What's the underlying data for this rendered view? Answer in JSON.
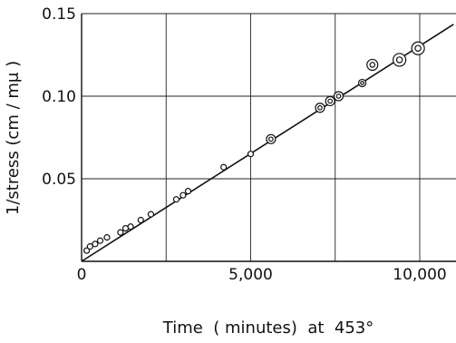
{
  "chart_data": {
    "type": "scatter",
    "title": "",
    "xlabel": "Time  ( minutes)  at  453°",
    "ylabel": "1/stress (cm / mμ )",
    "xlim": [
      0,
      11000
    ],
    "ylim": [
      0,
      0.15
    ],
    "xticks": [
      0,
      5000,
      10000
    ],
    "xtick_labels": [
      "0",
      "5,000",
      "10,000"
    ],
    "yticks": [
      0.05,
      0.1,
      0.15
    ],
    "ytick_labels": [
      "0.05",
      "0.10",
      "0.15"
    ],
    "grid": true,
    "fit_line": {
      "x": [
        0,
        11000
      ],
      "y": [
        0,
        0.1435
      ]
    },
    "series": [
      {
        "marker": "open-circle",
        "points": [
          {
            "x": 150,
            "y": 0.0065,
            "r": 3
          },
          {
            "x": 250,
            "y": 0.009,
            "r": 3
          },
          {
            "x": 400,
            "y": 0.0105,
            "r": 3
          },
          {
            "x": 550,
            "y": 0.0125,
            "r": 3
          },
          {
            "x": 750,
            "y": 0.0145,
            "r": 3
          },
          {
            "x": 1150,
            "y": 0.0175,
            "r": 3
          },
          {
            "x": 1300,
            "y": 0.02,
            "r": 3
          },
          {
            "x": 1450,
            "y": 0.021,
            "r": 3
          },
          {
            "x": 1750,
            "y": 0.025,
            "r": 3
          },
          {
            "x": 2050,
            "y": 0.0285,
            "r": 3
          },
          {
            "x": 2800,
            "y": 0.0375,
            "r": 3
          },
          {
            "x": 3000,
            "y": 0.04,
            "r": 3
          },
          {
            "x": 3150,
            "y": 0.0425,
            "r": 3
          },
          {
            "x": 4200,
            "y": 0.057,
            "r": 3
          },
          {
            "x": 5000,
            "y": 0.065,
            "r": 3
          }
        ]
      },
      {
        "marker": "ringed-circle",
        "points": [
          {
            "x": 5600,
            "y": 0.074,
            "r": 5
          },
          {
            "x": 7050,
            "y": 0.093,
            "r": 5
          },
          {
            "x": 7350,
            "y": 0.097,
            "r": 5
          },
          {
            "x": 7600,
            "y": 0.1,
            "r": 5
          },
          {
            "x": 8300,
            "y": 0.108,
            "r": 4
          },
          {
            "x": 8600,
            "y": 0.119,
            "r": 6
          },
          {
            "x": 9400,
            "y": 0.122,
            "r": 7
          },
          {
            "x": 9950,
            "y": 0.129,
            "r": 7
          }
        ]
      }
    ]
  }
}
